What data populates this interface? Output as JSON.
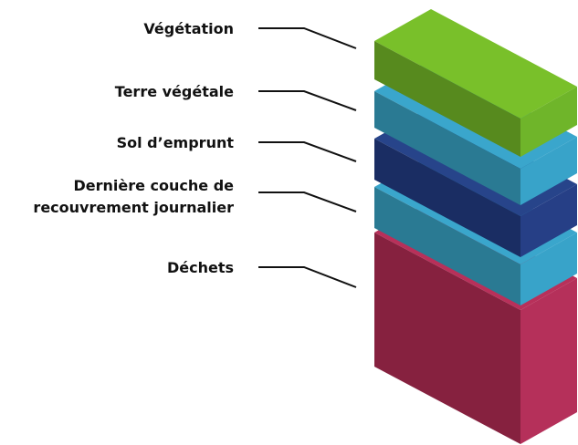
{
  "layers": [
    {
      "lines": [
        "Végétation"
      ]
    },
    {
      "lines": [
        "Terre végétale"
      ]
    },
    {
      "lines": [
        "Sol d’emprunt"
      ]
    },
    {
      "lines": [
        "Dernière couche de",
        "recouvrement journalier"
      ]
    },
    {
      "lines": [
        "Déchets"
      ]
    }
  ]
}
